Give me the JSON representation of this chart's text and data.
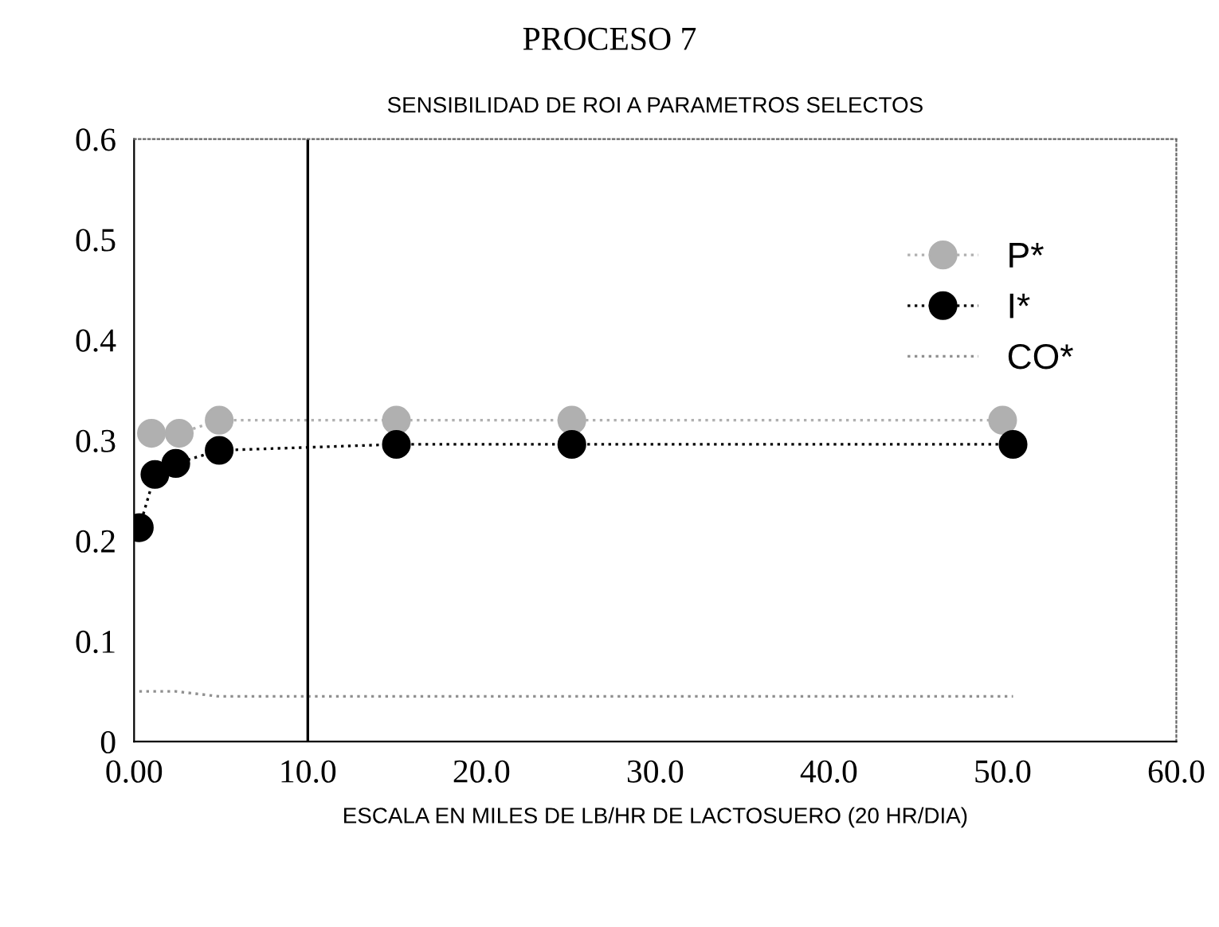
{
  "chart_data": {
    "type": "line",
    "title": "PROCESO 7",
    "subtitle": "SENSIBILIDAD DE ROI A PARAMETROS SELECTOS",
    "xlabel": "ESCALA EN MILES DE LB/HR DE LACTOSUERO (20 HR/DIA)",
    "xlim": [
      0,
      60
    ],
    "xticks": [
      {
        "value": 0,
        "label": "0.00"
      },
      {
        "value": 10,
        "label": "10.0"
      },
      {
        "value": 20,
        "label": "20.0"
      },
      {
        "value": 30,
        "label": "30.0"
      },
      {
        "value": 40,
        "label": "40.0"
      },
      {
        "value": 50,
        "label": "50.0"
      },
      {
        "value": 60,
        "label": "60.0"
      }
    ],
    "ylim": [
      0,
      0.6
    ],
    "yticks": [
      0,
      0.1,
      0.2,
      0.3,
      0.4,
      0.5,
      0.6
    ],
    "grid": false,
    "legend": "top right",
    "ref_lines": [
      {
        "axis": "x",
        "value": 10,
        "color": "#000000",
        "line_style": "solid"
      }
    ],
    "series": [
      {
        "name": "P*",
        "color": "#b0b0b0",
        "marker": "circle",
        "line_style": "dotted",
        "x": [
          1.0,
          2.6,
          4.9,
          15.1,
          25.2,
          50.0
        ],
        "values": [
          0.307,
          0.307,
          0.32,
          0.32,
          0.32,
          0.32
        ]
      },
      {
        "name": "I*",
        "color": "#000000",
        "marker": "circle",
        "line_style": "dotted",
        "x": [
          0.3,
          1.2,
          2.4,
          4.9,
          15.1,
          25.2,
          50.6
        ],
        "values": [
          0.213,
          0.266,
          0.277,
          0.29,
          0.296,
          0.296,
          0.296
        ]
      },
      {
        "name": "CO*",
        "color": "#909090",
        "marker": "none",
        "line_style": "dotted",
        "x": [
          0.3,
          1.2,
          2.4,
          4.9,
          15.1,
          25.2,
          50.6
        ],
        "values": [
          0.05,
          0.05,
          0.05,
          0.045,
          0.045,
          0.045,
          0.045
        ]
      }
    ]
  }
}
